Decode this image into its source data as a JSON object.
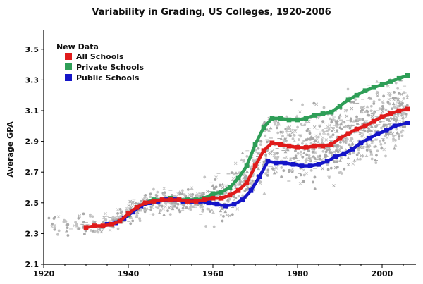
{
  "chart_data": {
    "type": "scatter",
    "title": "Variability in Grading, US Colleges, 1920-2006",
    "xlabel": "",
    "ylabel": "Average GPA",
    "xlim": [
      1920,
      2008
    ],
    "ylim": [
      2.1,
      3.6
    ],
    "x_ticks": [
      "1920",
      "1940",
      "1960",
      "1980",
      "2000"
    ],
    "y_ticks": [
      "2.1",
      "2.3",
      "2.5",
      "2.7",
      "2.9",
      "3.1",
      "3.3",
      "3.5"
    ],
    "grid": false,
    "legend": {
      "title": "New Data",
      "position": "top-left"
    },
    "background_points_color": "#a9a9a9",
    "series": [
      {
        "name": "All Schools",
        "color": "#e01b1b",
        "x": [
          1930,
          1932,
          1934,
          1936,
          1938,
          1940,
          1942,
          1944,
          1946,
          1948,
          1950,
          1952,
          1954,
          1956,
          1958,
          1960,
          1962,
          1964,
          1966,
          1968,
          1970,
          1972,
          1974,
          1976,
          1978,
          1980,
          1982,
          1984,
          1986,
          1988,
          1990,
          1992,
          1994,
          1996,
          1998,
          2000,
          2002,
          2004,
          2006
        ],
        "values": [
          2.34,
          2.35,
          2.35,
          2.36,
          2.38,
          2.43,
          2.47,
          2.5,
          2.51,
          2.52,
          2.52,
          2.52,
          2.51,
          2.51,
          2.52,
          2.53,
          2.53,
          2.55,
          2.58,
          2.63,
          2.74,
          2.84,
          2.89,
          2.88,
          2.87,
          2.86,
          2.86,
          2.87,
          2.87,
          2.88,
          2.92,
          2.95,
          2.98,
          3.0,
          3.03,
          3.06,
          3.08,
          3.1,
          3.11
        ]
      },
      {
        "name": "Private Schools",
        "color": "#2e9e57",
        "x": [
          1936,
          1938,
          1940,
          1942,
          1944,
          1946,
          1948,
          1950,
          1952,
          1954,
          1956,
          1958,
          1960,
          1962,
          1964,
          1966,
          1968,
          1970,
          1972,
          1974,
          1976,
          1978,
          1980,
          1982,
          1984,
          1986,
          1988,
          1990,
          1992,
          1994,
          1996,
          1998,
          2000,
          2002,
          2004,
          2006
        ],
        "values": [
          2.36,
          2.38,
          2.42,
          2.47,
          2.5,
          2.52,
          2.52,
          2.53,
          2.52,
          2.52,
          2.52,
          2.53,
          2.56,
          2.57,
          2.6,
          2.66,
          2.74,
          2.88,
          2.99,
          3.05,
          3.05,
          3.04,
          3.04,
          3.05,
          3.07,
          3.08,
          3.09,
          3.13,
          3.17,
          3.2,
          3.23,
          3.25,
          3.27,
          3.29,
          3.31,
          3.33
        ]
      },
      {
        "name": "Public Schools",
        "color": "#1515c8",
        "x": [
          1935,
          1937,
          1939,
          1941,
          1943,
          1945,
          1947,
          1949,
          1951,
          1953,
          1955,
          1957,
          1959,
          1961,
          1963,
          1965,
          1967,
          1969,
          1971,
          1973,
          1975,
          1977,
          1979,
          1981,
          1983,
          1985,
          1987,
          1989,
          1991,
          1993,
          1995,
          1997,
          1999,
          2001,
          2003,
          2006
        ],
        "values": [
          2.36,
          2.37,
          2.4,
          2.44,
          2.48,
          2.5,
          2.51,
          2.52,
          2.52,
          2.51,
          2.51,
          2.51,
          2.5,
          2.49,
          2.48,
          2.49,
          2.52,
          2.58,
          2.67,
          2.77,
          2.76,
          2.76,
          2.75,
          2.74,
          2.74,
          2.75,
          2.77,
          2.8,
          2.82,
          2.85,
          2.89,
          2.92,
          2.95,
          2.97,
          3.0,
          3.02
        ]
      }
    ]
  }
}
